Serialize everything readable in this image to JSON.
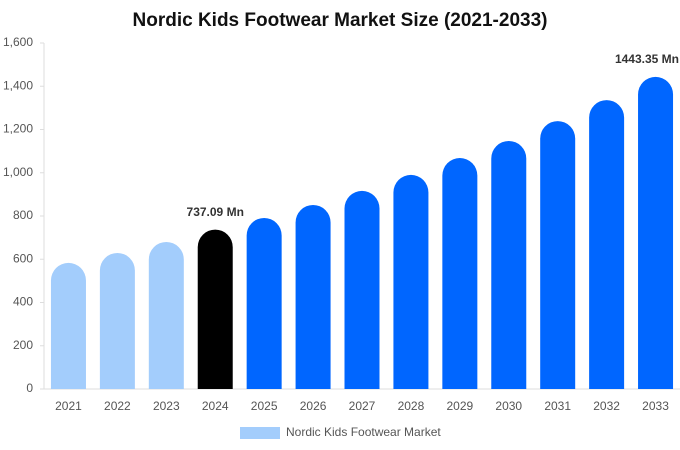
{
  "chart_data": {
    "type": "bar",
    "title": "Nordic Kids Footwear Market Size (2021-2033)",
    "categories": [
      "2021",
      "2022",
      "2023",
      "2024",
      "2025",
      "2026",
      "2027",
      "2028",
      "2029",
      "2030",
      "2031",
      "2032",
      "2033"
    ],
    "series": [
      {
        "name": "Nordic Kids Footwear Market",
        "color": "#a3cdfc",
        "values": [
          583,
          629,
          680,
          737.09,
          791,
          851,
          916,
          990,
          1068,
          1147,
          1239,
          1336,
          1443.35
        ],
        "value_labels": [
          null,
          null,
          null,
          "737.09 Mn",
          null,
          null,
          null,
          null,
          null,
          null,
          null,
          null,
          "1443.35 Mn"
        ],
        "point_colors": [
          "#a3cdfc",
          "#a3cdfc",
          "#a3cdfc",
          "#000000",
          "#0066ff",
          "#0066ff",
          "#0066ff",
          "#0066ff",
          "#0066ff",
          "#0066ff",
          "#0066ff",
          "#0066ff",
          "#0066ff"
        ]
      }
    ],
    "ylim": [
      0,
      1600
    ],
    "yticks": [
      0,
      200,
      400,
      600,
      800,
      {
        "value": 1000,
        "label": "1,000"
      },
      {
        "value": 1200,
        "label": "1,200"
      },
      {
        "value": 1400,
        "label": "1,400"
      },
      {
        "value": 1600,
        "label": "1,600"
      }
    ],
    "grid": false,
    "legend": "bottom"
  }
}
